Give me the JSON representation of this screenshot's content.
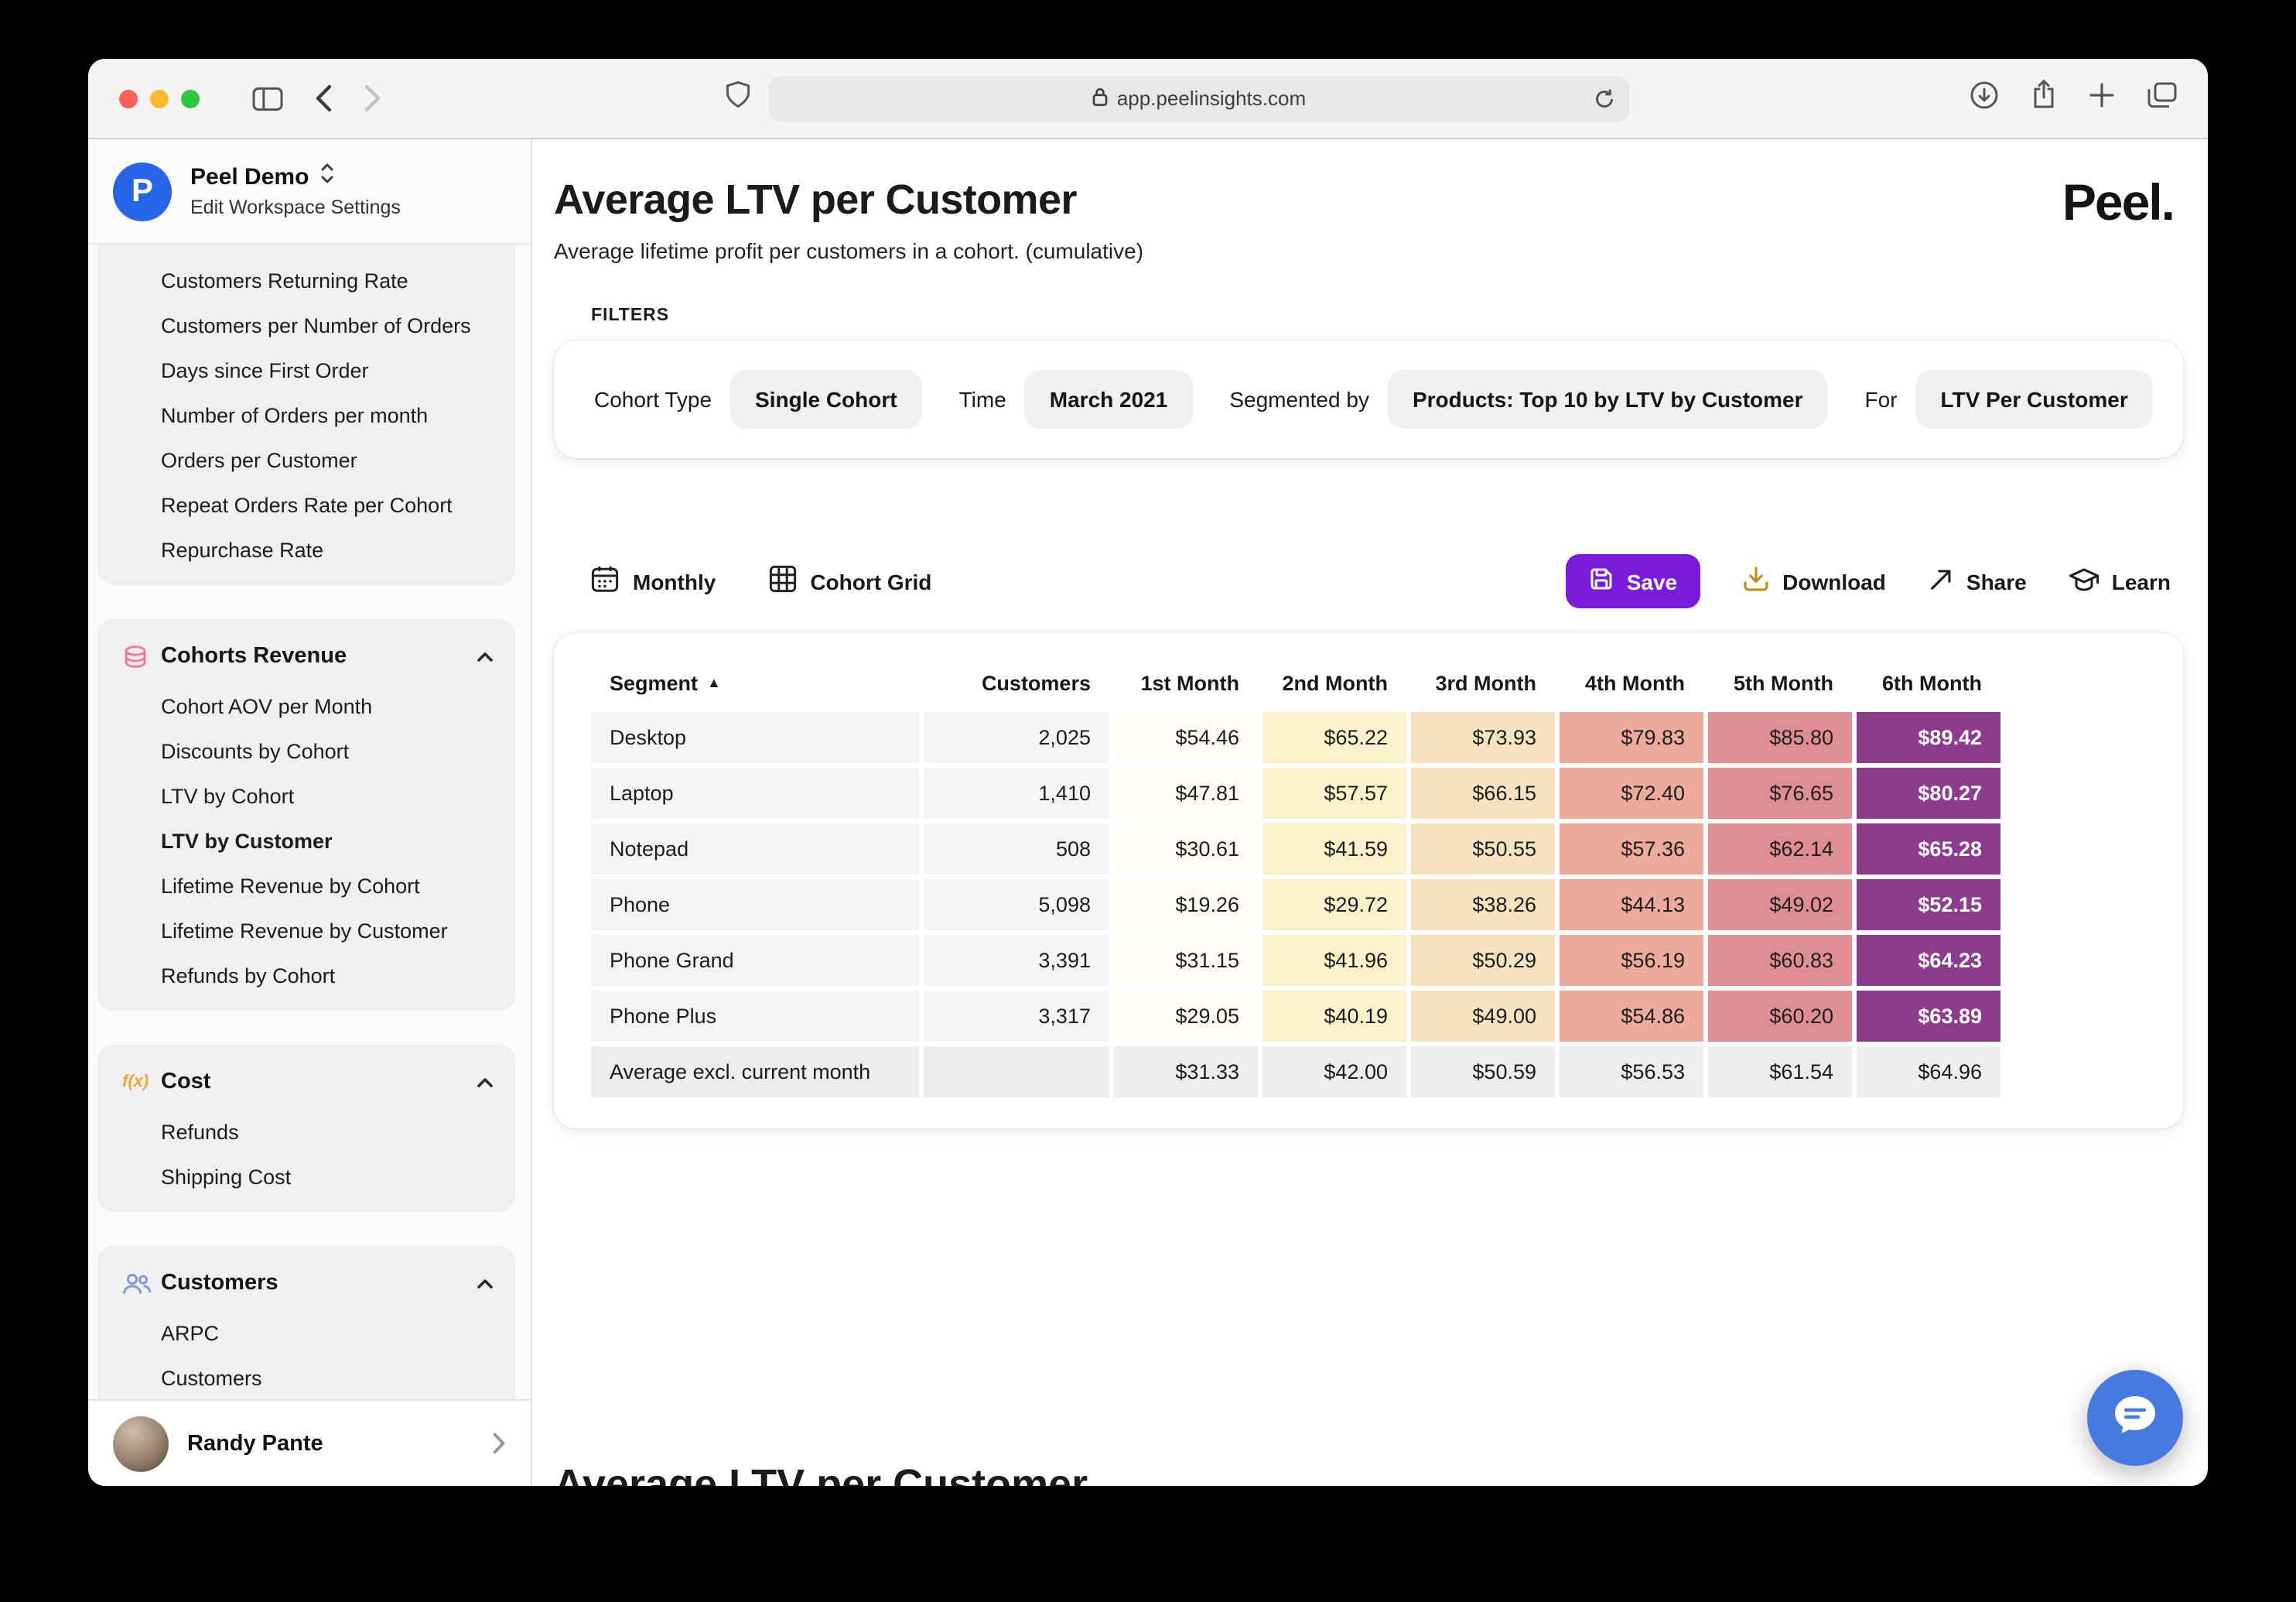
{
  "browser": {
    "url": "app.peelinsights.com"
  },
  "workspace": {
    "logo_letter": "P",
    "name": "Peel Demo",
    "settings_link": "Edit Workspace Settings"
  },
  "sidebar": {
    "active_item": "LTV by Customer",
    "groups": [
      {
        "title": "",
        "items": [
          "Customers Returning Rate",
          "Customers per Number of Orders",
          "Days since First Order",
          "Number of Orders per month",
          "Orders per Customer",
          "Repeat Orders Rate per Cohort",
          "Repurchase Rate"
        ]
      },
      {
        "title": "Cohorts Revenue",
        "items": [
          "Cohort AOV per Month",
          "Discounts by Cohort",
          "LTV by Cohort",
          "LTV by Customer",
          "Lifetime Revenue by Cohort",
          "Lifetime Revenue by Customer",
          "Refunds by Cohort"
        ]
      },
      {
        "title": "Cost",
        "items": [
          "Refunds",
          "Shipping Cost"
        ]
      },
      {
        "title": "Customers",
        "items": [
          "ARPC",
          "Customers"
        ]
      }
    ],
    "user": {
      "name": "Randy Pante"
    }
  },
  "page": {
    "title": "Average LTV per Customer",
    "subtitle": "Average lifetime profit per customers in a cohort. (cumulative)",
    "brand": "Peel.",
    "partial_next_title": "Average LTV per Customer"
  },
  "filters": {
    "heading": "FILTERS",
    "items": [
      {
        "label": "Cohort Type",
        "value": "Single Cohort"
      },
      {
        "label": "Time",
        "value": "March 2021"
      },
      {
        "label": "Segmented by",
        "value": "Products: Top 10 by LTV by Customer"
      },
      {
        "label": "For",
        "value": "LTV Per Customer"
      }
    ]
  },
  "toolbar": {
    "monthly": "Monthly",
    "cohort_grid": "Cohort Grid",
    "save": "Save",
    "download": "Download",
    "share": "Share",
    "learn": "Learn"
  },
  "table": {
    "columns": [
      "Segment",
      "Customers",
      "1st Month",
      "2nd Month",
      "3rd Month",
      "4th Month",
      "5th Month",
      "6th Month"
    ],
    "sort_indicator": "▲",
    "heat_colors": [
      "#fffdf3",
      "#fbf2cc",
      "#f6e3c0",
      "#ecab9c",
      "#df8e94",
      "#8d3b8d"
    ],
    "heat_text_colors": [
      "#1d1d1f",
      "#1d1d1f",
      "#1d1d1f",
      "#1d1d1f",
      "#1d1d1f",
      "#ffffff"
    ],
    "rows": [
      {
        "segment": "Desktop",
        "customers": "2,025",
        "values": [
          "$54.46",
          "$65.22",
          "$73.93",
          "$79.83",
          "$85.80",
          "$89.42"
        ]
      },
      {
        "segment": "Laptop",
        "customers": "1,410",
        "values": [
          "$47.81",
          "$57.57",
          "$66.15",
          "$72.40",
          "$76.65",
          "$80.27"
        ]
      },
      {
        "segment": "Notepad",
        "customers": "508",
        "values": [
          "$30.61",
          "$41.59",
          "$50.55",
          "$57.36",
          "$62.14",
          "$65.28"
        ]
      },
      {
        "segment": "Phone",
        "customers": "5,098",
        "values": [
          "$19.26",
          "$29.72",
          "$38.26",
          "$44.13",
          "$49.02",
          "$52.15"
        ]
      },
      {
        "segment": "Phone Grand",
        "customers": "3,391",
        "values": [
          "$31.15",
          "$41.96",
          "$50.29",
          "$56.19",
          "$60.83",
          "$64.23"
        ]
      },
      {
        "segment": "Phone Plus",
        "customers": "3,317",
        "values": [
          "$29.05",
          "$40.19",
          "$49.00",
          "$54.86",
          "$60.20",
          "$63.89"
        ]
      },
      {
        "segment": "Average excl. current month",
        "customers": "",
        "values": [
          "$31.33",
          "$42.00",
          "$50.59",
          "$56.53",
          "$61.54",
          "$64.96"
        ],
        "type": "summary"
      }
    ]
  },
  "icons": {
    "cost_glyph": "f(x)"
  },
  "colors": {
    "save_button": "#7a1bdb",
    "chat_bubble": "#4779e0",
    "heat_max": "#8d3b8d"
  }
}
